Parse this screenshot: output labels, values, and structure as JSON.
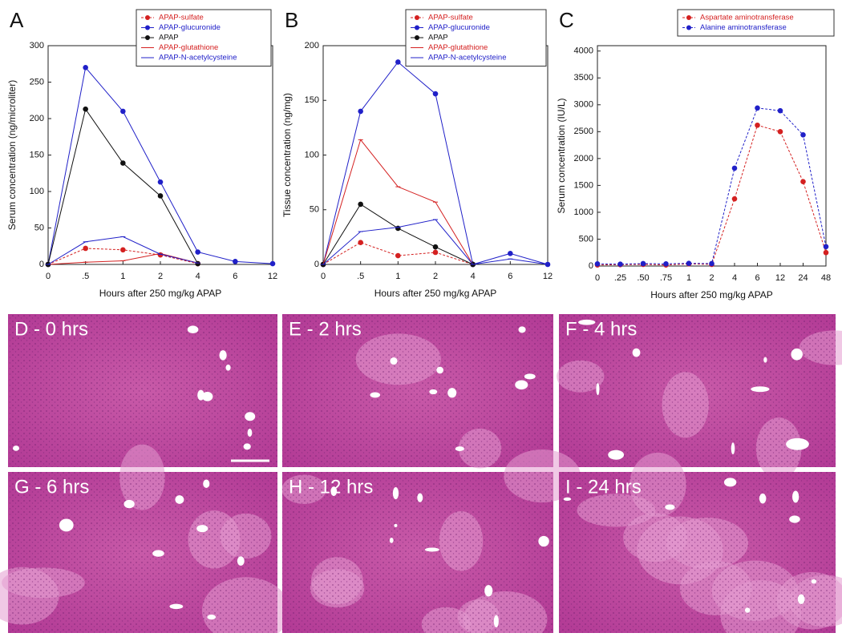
{
  "chart_data": [
    {
      "type": "line",
      "label": "A",
      "legend": "top-right",
      "ylabel": "Serum concentration (ng/microliter)",
      "xlabel": "Hours after 250 mg/kg APAP",
      "categories": [
        "0",
        ".5",
        "1",
        "2",
        "4",
        "6",
        "12"
      ],
      "ylim": [
        0,
        300
      ],
      "yticks": [
        0,
        50,
        100,
        150,
        200,
        250,
        300
      ],
      "series": [
        {
          "name": "APAP-sulfate",
          "color": "#d42020",
          "marker": "circle",
          "line_style": "dashed",
          "values": [
            0,
            22,
            20,
            13,
            1,
            null,
            null
          ]
        },
        {
          "name": "APAP-glucuronide",
          "color": "#2020c8",
          "marker": "circle",
          "line_style": "solid",
          "values": [
            0,
            270,
            210,
            113,
            17,
            4,
            1
          ]
        },
        {
          "name": "APAP",
          "color": "#111111",
          "marker": "circle",
          "line_style": "solid",
          "values": [
            0,
            213,
            139,
            94,
            1,
            null,
            null
          ]
        },
        {
          "name": "APAP-glutathione",
          "color": "#d42020",
          "marker": "none",
          "line_style": "solid",
          "values": [
            0,
            3,
            5,
            15,
            2,
            null,
            null
          ]
        },
        {
          "name": "APAP-N-acetylcysteine",
          "color": "#2020c8",
          "marker": "none",
          "line_style": "solid",
          "values": [
            0,
            31,
            38,
            14,
            2,
            null,
            null
          ]
        }
      ]
    },
    {
      "type": "line",
      "label": "B",
      "legend": "top-right",
      "ylabel": "Tissue concentration (ng/mg)",
      "xlabel": "Hours after 250 mg/kg APAP",
      "categories": [
        "0",
        ".5",
        "1",
        "2",
        "4",
        "6",
        "12"
      ],
      "ylim": [
        0,
        200
      ],
      "yticks": [
        0,
        50,
        100,
        150,
        200
      ],
      "series": [
        {
          "name": "APAP-sulfate",
          "color": "#d42020",
          "marker": "circle",
          "line_style": "dashed",
          "values": [
            0,
            20,
            8,
            11,
            0,
            null,
            null
          ]
        },
        {
          "name": "APAP-glucuronide",
          "color": "#2020c8",
          "marker": "circle",
          "line_style": "solid",
          "values": [
            0,
            140,
            185,
            156,
            0,
            10,
            0
          ]
        },
        {
          "name": "APAP",
          "color": "#111111",
          "marker": "circle",
          "line_style": "solid",
          "values": [
            0,
            55,
            33,
            16,
            0,
            null,
            null
          ]
        },
        {
          "name": "APAP-glutathione",
          "color": "#d42020",
          "marker": "none",
          "line_style": "solid",
          "values": [
            0,
            114,
            71,
            57,
            0,
            null,
            null
          ]
        },
        {
          "name": "APAP-N-acetylcysteine",
          "color": "#2020c8",
          "marker": "none",
          "line_style": "solid",
          "values": [
            0,
            30,
            34,
            41,
            0,
            5,
            0
          ]
        }
      ]
    },
    {
      "type": "line",
      "label": "C",
      "legend": "top-right",
      "ylabel": "Serum concentration (IU/L)",
      "xlabel": "Hours after 250 mg/kg APAP",
      "categories": [
        "0",
        ".25",
        ".50",
        ".75",
        "1",
        "2",
        "4",
        "6",
        "12",
        "24",
        "48"
      ],
      "ylim": [
        0,
        4100
      ],
      "yticks": [
        0,
        500,
        1000,
        1500,
        2000,
        2500,
        3000,
        3500,
        4000
      ],
      "series": [
        {
          "name": "Aspartate aminotransferase",
          "color": "#d42020",
          "marker": "circle",
          "line_style": "dashed",
          "values": [
            20,
            25,
            30,
            20,
            40,
            30,
            1250,
            2620,
            2500,
            1570,
            250
          ]
        },
        {
          "name": "Alanine aminotransferase",
          "color": "#2020c8",
          "marker": "circle",
          "line_style": "dashed",
          "values": [
            40,
            35,
            45,
            40,
            50,
            45,
            1820,
            2940,
            2890,
            2440,
            360
          ]
        }
      ]
    }
  ],
  "images": [
    {
      "label": "D - 0 hrs"
    },
    {
      "label": "E - 2 hrs"
    },
    {
      "label": "F - 4 hrs"
    },
    {
      "label": "G - 6 hrs"
    },
    {
      "label": "H - 12 hrs"
    },
    {
      "label": "I - 24 hrs"
    }
  ]
}
